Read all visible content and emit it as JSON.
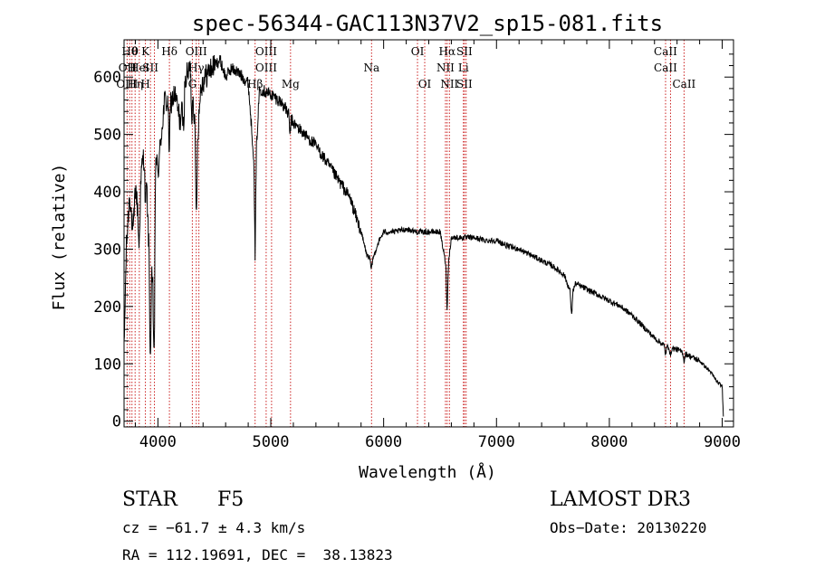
{
  "chart_data": {
    "type": "line",
    "title": "spec-56344-GAC113N37V2_sp15-081.fits",
    "xlabel": "Wavelength (Å)",
    "ylabel": "Flux (relative)",
    "xlim": [
      3700,
      9100
    ],
    "ylim": [
      -10,
      665
    ],
    "x_ticks": [
      4000,
      5000,
      6000,
      7000,
      8000,
      9000
    ],
    "y_ticks": [
      0,
      100,
      200,
      300,
      400,
      500,
      600
    ],
    "spectrum_knots": [
      [
        3700,
        120
      ],
      [
        3720,
        300
      ],
      [
        3750,
        400
      ],
      [
        3780,
        320
      ],
      [
        3800,
        410
      ],
      [
        3830,
        350
      ],
      [
        3860,
        450
      ],
      [
        3890,
        470
      ],
      [
        3920,
        300
      ],
      [
        3940,
        260
      ],
      [
        3960,
        220
      ],
      [
        3980,
        470
      ],
      [
        4000,
        430
      ],
      [
        4030,
        500
      ],
      [
        4060,
        560
      ],
      [
        4100,
        550
      ],
      [
        4150,
        570
      ],
      [
        4200,
        520
      ],
      [
        4250,
        600
      ],
      [
        4300,
        620
      ],
      [
        4340,
        460
      ],
      [
        4380,
        585
      ],
      [
        4450,
        610
      ],
      [
        4500,
        620
      ],
      [
        4550,
        630
      ],
      [
        4600,
        600
      ],
      [
        4650,
        615
      ],
      [
        4700,
        610
      ],
      [
        4750,
        600
      ],
      [
        4800,
        590
      ],
      [
        4861,
        430
      ],
      [
        4900,
        580
      ],
      [
        5000,
        570
      ],
      [
        5100,
        555
      ],
      [
        5200,
        520
      ],
      [
        5300,
        500
      ],
      [
        5400,
        480
      ],
      [
        5500,
        450
      ],
      [
        5600,
        420
      ],
      [
        5700,
        390
      ],
      [
        5800,
        330
      ],
      [
        5850,
        290
      ],
      [
        5900,
        280
      ],
      [
        5950,
        310
      ],
      [
        6000,
        330
      ],
      [
        6100,
        330
      ],
      [
        6200,
        335
      ],
      [
        6300,
        330
      ],
      [
        6400,
        330
      ],
      [
        6500,
        330
      ],
      [
        6563,
        260
      ],
      [
        6600,
        320
      ],
      [
        6700,
        320
      ],
      [
        6800,
        320
      ],
      [
        6900,
        315
      ],
      [
        7000,
        315
      ],
      [
        7100,
        305
      ],
      [
        7200,
        300
      ],
      [
        7300,
        290
      ],
      [
        7400,
        280
      ],
      [
        7500,
        270
      ],
      [
        7600,
        255
      ],
      [
        7665,
        220
      ],
      [
        7700,
        240
      ],
      [
        7800,
        230
      ],
      [
        7900,
        220
      ],
      [
        8000,
        210
      ],
      [
        8100,
        200
      ],
      [
        8200,
        185
      ],
      [
        8300,
        165
      ],
      [
        8400,
        145
      ],
      [
        8500,
        130
      ],
      [
        8600,
        125
      ],
      [
        8700,
        115
      ],
      [
        8800,
        105
      ],
      [
        8900,
        85
      ],
      [
        8950,
        70
      ],
      [
        9000,
        60
      ],
      [
        9010,
        10
      ]
    ],
    "dips": [
      [
        3834,
        60
      ],
      [
        3889,
        90
      ],
      [
        3933,
        180
      ],
      [
        3968,
        200
      ],
      [
        4101,
        80
      ],
      [
        4226,
        50
      ],
      [
        4300,
        90
      ],
      [
        4340,
        110
      ],
      [
        4861,
        140
      ],
      [
        5170,
        30
      ],
      [
        5890,
        20
      ],
      [
        6563,
        70
      ],
      [
        7665,
        40
      ],
      [
        8498,
        15
      ],
      [
        8542,
        15
      ],
      [
        8662,
        15
      ]
    ],
    "lines": [
      {
        "wl": 3727,
        "labels": [
          {
            "row": 1,
            "text": "OII"
          },
          {
            "row": 2,
            "text": "OIII"
          }
        ]
      },
      {
        "wl": 3750,
        "labels": [
          {
            "row": 0,
            "text": "Hθ"
          }
        ]
      },
      {
        "wl": 3770,
        "labels": [
          {
            "row": 1,
            "text": "H"
          }
        ]
      },
      {
        "wl": 3798,
        "labels": [
          {
            "row": 0,
            "text": "θ"
          },
          {
            "row": 2,
            "text": "Hη"
          }
        ]
      },
      {
        "wl": 3835,
        "labels": [
          {
            "row": 1,
            "text": "Hel"
          }
        ]
      },
      {
        "wl": 3889,
        "labels": [
          {
            "row": 0,
            "text": "K"
          },
          {
            "row": 2,
            "text": "H"
          }
        ]
      },
      {
        "wl": 3934,
        "labels": [
          {
            "row": 1,
            "text": "SII"
          }
        ]
      },
      {
        "wl": 3969,
        "labels": []
      },
      {
        "wl": 4102,
        "labels": [
          {
            "row": 0,
            "text": "Hδ"
          }
        ]
      },
      {
        "wl": 4305,
        "labels": [
          {
            "row": 2,
            "text": "G"
          }
        ]
      },
      {
        "wl": 4340,
        "labels": [
          {
            "row": 0,
            "text": "OIII"
          },
          {
            "row": 1,
            "text": "Hγ"
          }
        ]
      },
      {
        "wl": 4363,
        "labels": []
      },
      {
        "wl": 4861,
        "labels": [
          {
            "row": 2,
            "text": "Hβ"
          }
        ]
      },
      {
        "wl": 4959,
        "labels": [
          {
            "row": 0,
            "text": "OIII"
          },
          {
            "row": 1,
            "text": "OIII"
          }
        ]
      },
      {
        "wl": 5007,
        "labels": []
      },
      {
        "wl": 5175,
        "labels": [
          {
            "row": 2,
            "text": "Mg"
          }
        ]
      },
      {
        "wl": 5893,
        "labels": [
          {
            "row": 1,
            "text": "Na"
          }
        ]
      },
      {
        "wl": 6300,
        "labels": [
          {
            "row": 0,
            "text": "OI"
          }
        ]
      },
      {
        "wl": 6364,
        "labels": [
          {
            "row": 2,
            "text": "OI"
          }
        ]
      },
      {
        "wl": 6548,
        "labels": [
          {
            "row": 1,
            "text": "NII"
          }
        ]
      },
      {
        "wl": 6563,
        "labels": [
          {
            "row": 0,
            "text": "Hα"
          }
        ]
      },
      {
        "wl": 6583,
        "labels": [
          {
            "row": 2,
            "text": "NII"
          }
        ]
      },
      {
        "wl": 6707,
        "labels": [
          {
            "row": 1,
            "text": "Li"
          }
        ]
      },
      {
        "wl": 6716,
        "labels": [
          {
            "row": 0,
            "text": "SII"
          },
          {
            "row": 2,
            "text": "SII"
          }
        ]
      },
      {
        "wl": 6731,
        "labels": []
      },
      {
        "wl": 8498,
        "labels": [
          {
            "row": 0,
            "text": "CaII"
          },
          {
            "row": 1,
            "text": "CaII"
          }
        ]
      },
      {
        "wl": 8542,
        "labels": []
      },
      {
        "wl": 8662,
        "labels": [
          {
            "row": 2,
            "text": "CaII"
          }
        ]
      }
    ]
  },
  "info": {
    "class": "STAR",
    "subclass": "F5",
    "survey": "LAMOST DR3",
    "cz": "cz = −61.7 ± 4.3 km/s",
    "obs_date": "Obs−Date: 20130220",
    "coords": "RA = 112.19691, DEC =  38.13823"
  },
  "colors": {
    "spectrum": "#000000",
    "line_marker": "#cc2222",
    "axes": "#000000"
  }
}
